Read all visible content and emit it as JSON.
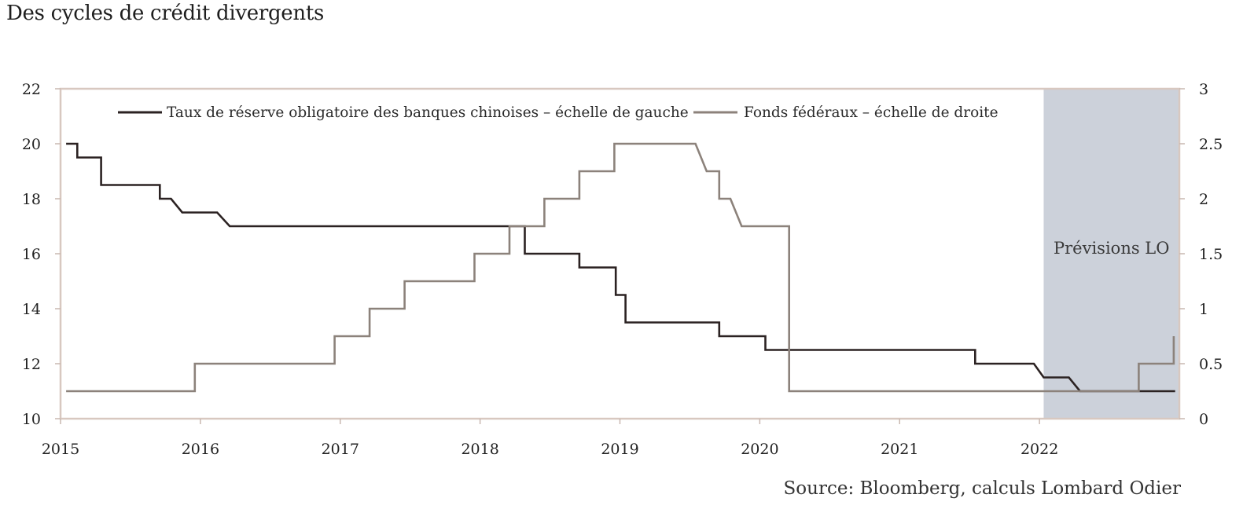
{
  "chart_data": {
    "type": "line",
    "title": "Des cycles de crédit divergents",
    "source": "Source: Bloomberg, calculs Lombard Odier",
    "forecast_label": "Prévisions LO",
    "forecast_start": 2022.03,
    "forecast_end": 2023.0,
    "x_ticks": [
      2015,
      2016,
      2017,
      2018,
      2019,
      2020,
      2021,
      2022
    ],
    "xlim": [
      2015,
      2023
    ],
    "y_left": {
      "lim": [
        10,
        22
      ],
      "ticks": [
        10,
        12,
        14,
        16,
        18,
        20,
        22
      ]
    },
    "y_right": {
      "lim": [
        0,
        3
      ],
      "ticks": [
        "0",
        "0.5",
        "1",
        "1.5",
        "2",
        "2.5",
        "3"
      ]
    },
    "legend_placement": "top-inside",
    "series": [
      {
        "name": "Taux de réserve obligatoire des banques chinoises – échelle de gauche",
        "axis": "left",
        "color": "#2b2222",
        "points": [
          [
            2015.04,
            20.0
          ],
          [
            2015.12,
            20.0
          ],
          [
            2015.12,
            19.5
          ],
          [
            2015.29,
            19.5
          ],
          [
            2015.29,
            18.5
          ],
          [
            2015.71,
            18.5
          ],
          [
            2015.71,
            18.0
          ],
          [
            2015.79,
            18.0
          ],
          [
            2015.87,
            17.5
          ],
          [
            2016.12,
            17.5
          ],
          [
            2016.21,
            17.0
          ],
          [
            2018.32,
            17.0
          ],
          [
            2018.32,
            16.0
          ],
          [
            2018.71,
            16.0
          ],
          [
            2018.71,
            15.5
          ],
          [
            2018.97,
            15.5
          ],
          [
            2018.97,
            14.5
          ],
          [
            2019.04,
            14.5
          ],
          [
            2019.04,
            13.5
          ],
          [
            2019.71,
            13.5
          ],
          [
            2019.71,
            13.0
          ],
          [
            2020.04,
            13.0
          ],
          [
            2020.04,
            12.5
          ],
          [
            2021.54,
            12.5
          ],
          [
            2021.54,
            12.0
          ],
          [
            2021.96,
            12.0
          ],
          [
            2022.03,
            11.5
          ],
          [
            2022.21,
            11.5
          ],
          [
            2022.29,
            11.0
          ],
          [
            2022.97,
            11.0
          ]
        ]
      },
      {
        "name": "Fonds fédéraux – échelle de droite",
        "axis": "right",
        "color": "#8c827b",
        "points": [
          [
            2015.04,
            0.25
          ],
          [
            2015.96,
            0.25
          ],
          [
            2015.96,
            0.5
          ],
          [
            2016.96,
            0.5
          ],
          [
            2016.96,
            0.75
          ],
          [
            2017.21,
            0.75
          ],
          [
            2017.21,
            1.0
          ],
          [
            2017.46,
            1.0
          ],
          [
            2017.46,
            1.25
          ],
          [
            2017.96,
            1.25
          ],
          [
            2017.96,
            1.5
          ],
          [
            2018.21,
            1.5
          ],
          [
            2018.21,
            1.75
          ],
          [
            2018.46,
            1.75
          ],
          [
            2018.46,
            2.0
          ],
          [
            2018.71,
            2.0
          ],
          [
            2018.71,
            2.25
          ],
          [
            2018.96,
            2.25
          ],
          [
            2018.96,
            2.5
          ],
          [
            2019.54,
            2.5
          ],
          [
            2019.62,
            2.25
          ],
          [
            2019.71,
            2.25
          ],
          [
            2019.71,
            2.0
          ],
          [
            2019.79,
            2.0
          ],
          [
            2019.87,
            1.75
          ],
          [
            2020.21,
            1.75
          ],
          [
            2020.21,
            0.25
          ],
          [
            2022.71,
            0.25
          ],
          [
            2022.71,
            0.5
          ],
          [
            2022.96,
            0.5
          ],
          [
            2022.96,
            0.75
          ]
        ]
      }
    ]
  }
}
